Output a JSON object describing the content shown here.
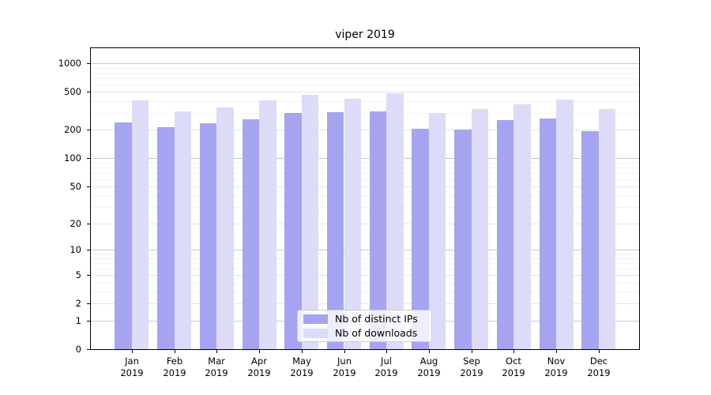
{
  "title": "viper 2019",
  "colors": {
    "distinct_ips": "#a4a4f0",
    "downloads": "#dcdcf8",
    "grid_major": "#c9c9c9",
    "grid_mid": "#e3e3e3",
    "grid_minor": "#f2f2f2",
    "axis": "#000000",
    "legend_border": "#cccccc"
  },
  "legend": {
    "items": [
      {
        "label": "Nb of distinct IPs",
        "color_key": "distinct_ips"
      },
      {
        "label": "Nb of downloads",
        "color_key": "downloads"
      }
    ]
  },
  "y_axis": {
    "tick_values": [
      1000,
      500,
      200,
      100,
      50,
      20,
      10,
      5,
      2,
      1,
      0
    ]
  },
  "x_axis": {
    "year": "2019",
    "months": [
      "Jan",
      "Feb",
      "Mar",
      "Apr",
      "May",
      "Jun",
      "Jul",
      "Aug",
      "Sep",
      "Oct",
      "Nov",
      "Dec"
    ]
  },
  "chart_data": {
    "type": "bar",
    "categories": [
      "Jan 2019",
      "Feb 2019",
      "Mar 2019",
      "Apr 2019",
      "May 2019",
      "Jun 2019",
      "Jul 2019",
      "Aug 2019",
      "Sep 2019",
      "Oct 2019",
      "Nov 2019",
      "Dec 2019"
    ],
    "series": [
      {
        "name": "Nb of distinct IPs",
        "values": [
          241,
          212,
          236,
          258,
          300,
          310,
          315,
          207,
          200,
          253,
          265,
          193
        ]
      },
      {
        "name": "Nb of downloads",
        "values": [
          412,
          316,
          347,
          412,
          468,
          426,
          483,
          303,
          333,
          375,
          420,
          332
        ]
      }
    ],
    "title": "viper 2019",
    "xlabel": "",
    "ylabel": "",
    "yscale": "log1p",
    "ylim": [
      0,
      1445
    ],
    "grid": true,
    "legend_position": "lower center"
  }
}
